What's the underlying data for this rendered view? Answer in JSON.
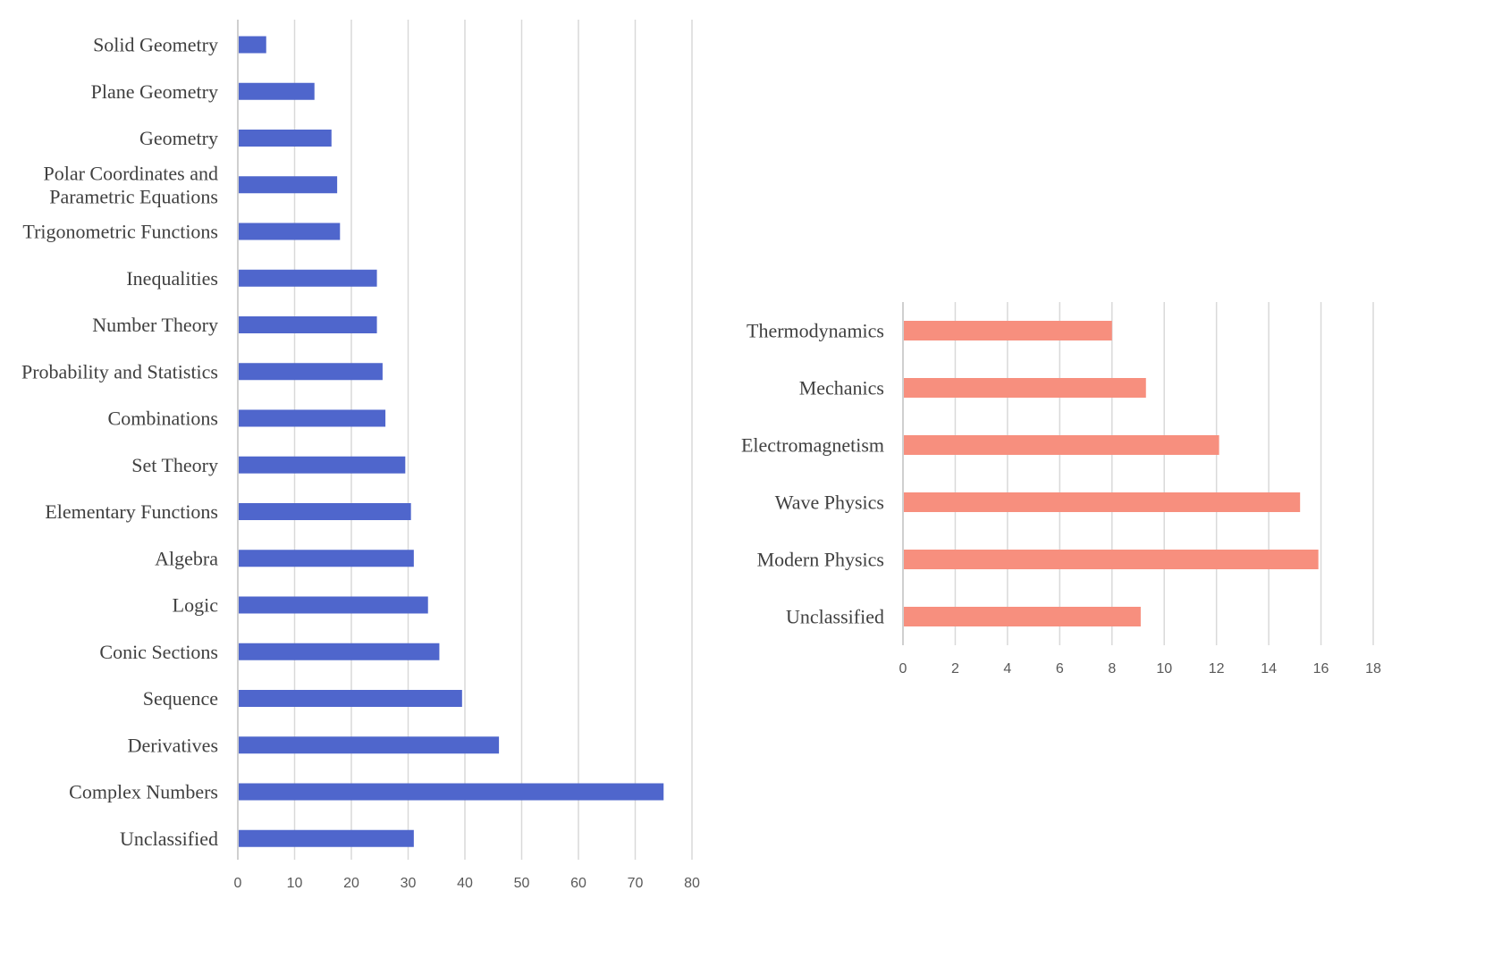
{
  "chart_data": [
    {
      "type": "bar",
      "orientation": "horizontal",
      "title": "",
      "xlabel": "",
      "ylabel": "",
      "xlim": [
        0,
        80
      ],
      "ticks": [
        "0",
        "10",
        "20",
        "30",
        "40",
        "50",
        "60",
        "70",
        "80"
      ],
      "grid": true,
      "color": "#4f66cc",
      "categories": [
        "Solid Geometry",
        "Plane Geometry",
        "Geometry",
        "Polar Coordinates and\nParametric Equations",
        "Trigonometric Functions",
        "Inequalities",
        "Number Theory",
        "Probability and Statistics",
        "Combinations",
        "Set Theory",
        "Elementary Functions",
        "Algebra",
        "Logic",
        "Conic Sections",
        "Sequence",
        "Derivatives",
        "Complex Numbers",
        "Unclassified"
      ],
      "values": [
        5,
        13.5,
        16.5,
        17.5,
        18,
        24.5,
        24.5,
        25.5,
        26,
        29.5,
        30.5,
        31,
        33.5,
        35.5,
        39.5,
        46,
        75,
        31
      ]
    },
    {
      "type": "bar",
      "orientation": "horizontal",
      "title": "",
      "xlabel": "",
      "ylabel": "",
      "xlim": [
        0,
        18
      ],
      "ticks": [
        "0",
        "2",
        "4",
        "6",
        "8",
        "10",
        "12",
        "14",
        "16",
        "18"
      ],
      "grid": true,
      "color": "#f78f7e",
      "categories": [
        "Thermodynamics",
        "Mechanics",
        "Electromagnetism",
        "Wave Physics",
        "Modern Physics",
        "Unclassified"
      ],
      "values": [
        8,
        9.3,
        12.1,
        15.2,
        15.9,
        9.1
      ]
    }
  ]
}
